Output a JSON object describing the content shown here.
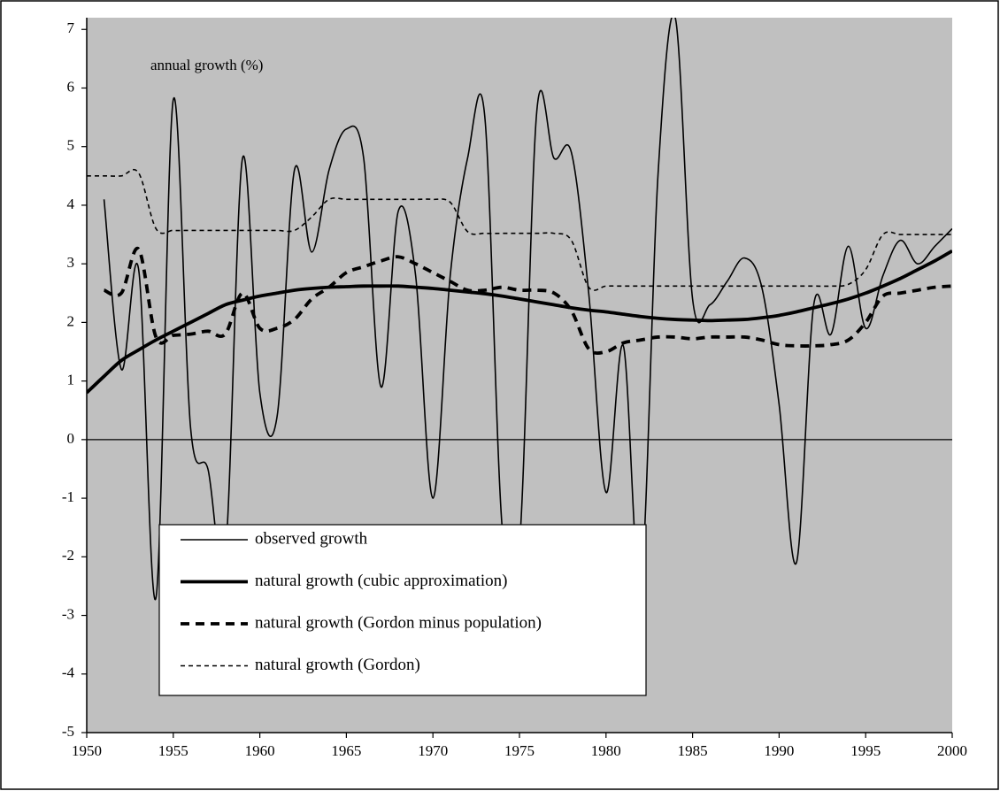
{
  "chart_data": {
    "type": "line",
    "annotation": "annual growth (%)",
    "x": [
      1950,
      1951,
      1952,
      1953,
      1954,
      1955,
      1956,
      1957,
      1958,
      1959,
      1960,
      1961,
      1962,
      1963,
      1964,
      1965,
      1966,
      1967,
      1968,
      1969,
      1970,
      1971,
      1972,
      1973,
      1974,
      1975,
      1976,
      1977,
      1978,
      1979,
      1980,
      1981,
      1982,
      1983,
      1984,
      1985,
      1986,
      1987,
      1988,
      1989,
      1990,
      1991,
      1992,
      1993,
      1994,
      1995,
      1996,
      1997,
      1998,
      1999,
      2000
    ],
    "xlim": [
      1950,
      2000
    ],
    "xticks": [
      1950,
      1955,
      1960,
      1965,
      1970,
      1975,
      1980,
      1985,
      1990,
      1995,
      2000
    ],
    "ylim": [
      -5,
      7.2
    ],
    "yticks": [
      -5,
      -4,
      -3,
      -2,
      -1,
      0,
      1,
      2,
      3,
      4,
      5,
      6,
      7
    ],
    "background": "#c0c0c0",
    "legend": "lower-left",
    "series": [
      {
        "name": "observed growth",
        "color": "#000000",
        "style": "solid",
        "weight": "thin",
        "values": [
          null,
          4.1,
          1.2,
          2.9,
          -2.7,
          5.8,
          0.2,
          -0.5,
          -2.0,
          4.8,
          0.8,
          0.4,
          4.6,
          3.2,
          4.6,
          5.3,
          4.8,
          0.9,
          3.9,
          2.8,
          -1.0,
          2.8,
          4.8,
          5.5,
          -1.5,
          -1.8,
          5.6,
          4.8,
          4.9,
          2.5,
          -0.9,
          1.6,
          -2.5,
          4.5,
          7.2,
          2.4,
          2.3,
          2.7,
          3.1,
          2.6,
          0.6,
          -2.1,
          2.3,
          1.8,
          3.3,
          1.9,
          2.8,
          3.4,
          3.0,
          3.3,
          3.6
        ]
      },
      {
        "name": "natural growth (cubic approximation)",
        "color": "#000000",
        "style": "solid",
        "weight": "thick",
        "values": [
          0.8,
          1.08,
          1.35,
          1.53,
          1.7,
          1.85,
          2.0,
          2.15,
          2.3,
          2.38,
          2.45,
          2.5,
          2.55,
          2.58,
          2.6,
          2.61,
          2.62,
          2.62,
          2.62,
          2.6,
          2.58,
          2.55,
          2.52,
          2.49,
          2.45,
          2.4,
          2.35,
          2.3,
          2.25,
          2.21,
          2.18,
          2.14,
          2.1,
          2.07,
          2.05,
          2.04,
          2.03,
          2.04,
          2.05,
          2.08,
          2.12,
          2.18,
          2.25,
          2.32,
          2.4,
          2.5,
          2.62,
          2.75,
          2.9,
          3.05,
          3.22
        ]
      },
      {
        "name": "natural growth (Gordon minus population)",
        "color": "#000000",
        "style": "dashed",
        "weight": "thick",
        "values": [
          null,
          2.55,
          2.5,
          3.25,
          1.75,
          1.78,
          1.8,
          1.85,
          1.8,
          2.5,
          1.9,
          1.9,
          2.05,
          2.4,
          2.6,
          2.85,
          2.95,
          3.05,
          3.12,
          3.0,
          2.85,
          2.7,
          2.55,
          2.55,
          2.6,
          2.55,
          2.55,
          2.5,
          2.2,
          1.55,
          1.5,
          1.65,
          1.7,
          1.75,
          1.75,
          1.72,
          1.75,
          1.75,
          1.75,
          1.7,
          1.62,
          1.6,
          1.6,
          1.62,
          1.7,
          2.0,
          2.45,
          2.5,
          2.55,
          2.6,
          2.62
        ]
      },
      {
        "name": "natural growth (Gordon)",
        "color": "#000000",
        "style": "dashed",
        "weight": "thin",
        "values": [
          4.5,
          4.5,
          4.5,
          4.55,
          3.6,
          3.57,
          3.57,
          3.57,
          3.57,
          3.57,
          3.57,
          3.57,
          3.57,
          3.8,
          4.1,
          4.1,
          4.1,
          4.1,
          4.1,
          4.1,
          4.1,
          4.05,
          3.55,
          3.52,
          3.52,
          3.52,
          3.52,
          3.52,
          3.4,
          2.6,
          2.62,
          2.62,
          2.62,
          2.62,
          2.62,
          2.62,
          2.62,
          2.62,
          2.62,
          2.62,
          2.62,
          2.62,
          2.62,
          2.62,
          2.65,
          2.9,
          3.5,
          3.5,
          3.5,
          3.5,
          3.5
        ]
      }
    ]
  }
}
